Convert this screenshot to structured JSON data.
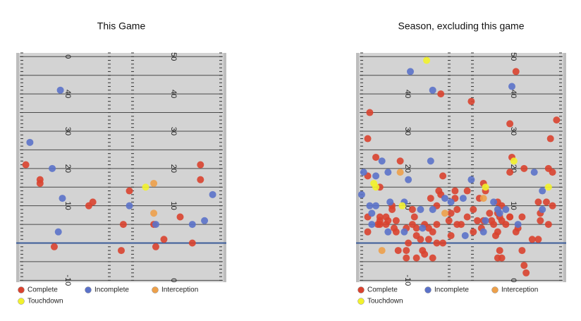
{
  "chart_data": [
    {
      "type": "scatter",
      "title": "This Game",
      "xlim": [
        0,
        100
      ],
      "ylim": [
        -10.5,
        51
      ],
      "yticks": [
        {
          "value": 50,
          "label": "0"
        },
        40,
        30,
        20,
        10,
        -10
      ],
      "y2ticks": [
        50,
        40,
        30,
        20,
        10,
        {
          "value": -10,
          "label": "0"
        }
      ],
      "series": [
        {
          "name": "Complete",
          "color": "#d9432f",
          "x": [
            3,
            10,
            10,
            17,
            34,
            36,
            54,
            51,
            50,
            66,
            67,
            71,
            79,
            85,
            89,
            89
          ],
          "values": [
            21,
            17,
            16,
            -1,
            10,
            11,
            14,
            5,
            -2,
            5,
            -1,
            1,
            7,
            0,
            21,
            17
          ]
        },
        {
          "name": "Incomplete",
          "color": "#5b72c9",
          "x": [
            20,
            5,
            16,
            21,
            19,
            54,
            67,
            85,
            91,
            95
          ],
          "values": [
            41,
            27,
            20,
            12,
            3,
            10,
            5,
            5,
            6,
            13
          ]
        },
        {
          "name": "Interception",
          "color": "#eda04a",
          "x": [
            66,
            66
          ],
          "values": [
            16,
            8
          ]
        },
        {
          "name": "Touchdown",
          "color": "#f2f22c",
          "x": [
            62
          ],
          "values": [
            15
          ]
        }
      ]
    },
    {
      "type": "scatter",
      "title": "Season, excluding this game",
      "xlim": [
        0,
        100
      ],
      "ylim": [
        -10.5,
        51
      ],
      "yticks": [
        40,
        30,
        20,
        10,
        -10
      ],
      "y2ticks": [
        50,
        40,
        30,
        20,
        10,
        {
          "value": -10,
          "label": "0"
        }
      ],
      "series": [
        {
          "name": "Complete",
          "color": "#d9432f",
          "x": [
            77,
            40,
            55,
            5,
            74,
            97,
            4,
            94,
            8,
            75,
            20,
            74,
            81,
            93,
            95,
            4,
            41,
            47,
            53,
            61,
            62,
            10,
            39,
            40,
            35,
            26,
            27,
            38,
            16,
            13,
            10,
            4,
            14,
            18,
            26,
            32,
            44,
            45,
            48,
            53,
            58,
            64,
            68,
            69,
            74,
            80,
            89,
            92,
            95,
            88,
            89,
            93,
            4,
            9,
            13,
            17,
            23,
            28,
            34,
            38,
            36,
            45,
            48,
            50,
            56,
            60,
            61,
            66,
            68,
            70,
            72,
            77,
            78,
            85,
            88,
            67,
            69,
            68,
            70,
            80,
            81,
            82,
            24,
            23,
            19,
            23,
            28,
            31,
            32,
            36,
            38,
            41,
            34,
            30,
            28,
            18,
            10,
            16,
            10,
            68,
            59,
            70,
            65,
            74,
            56,
            47
          ],
          "values": [
            46,
            40,
            38,
            35,
            32,
            33,
            28,
            28,
            23,
            23,
            22,
            19,
            20,
            20,
            19,
            18,
            18,
            14,
            14,
            16,
            14,
            15,
            14,
            13,
            12,
            9,
            7,
            10,
            9,
            7,
            7,
            7,
            6,
            6,
            5,
            5,
            6,
            8,
            9,
            7,
            6,
            8,
            8,
            7,
            7,
            7,
            8,
            11,
            10,
            11,
            6,
            5,
            3,
            5,
            5,
            4,
            4,
            4,
            4,
            5,
            3,
            2,
            5,
            5,
            3,
            4,
            6,
            5,
            3,
            6,
            5,
            3,
            4,
            1,
            1,
            2,
            -2,
            -4,
            -4,
            -2,
            -6,
            -8,
            0,
            -2,
            -2,
            -4,
            -4,
            -2,
            -3,
            -4,
            0,
            0,
            1,
            1,
            2,
            3,
            6,
            10,
            5,
            11,
            12,
            10,
            6,
            7,
            9,
            12
          ]
        },
        {
          "name": "Incomplete",
          "color": "#5b72c9",
          "x": [
            25,
            36,
            75,
            35,
            11,
            2,
            8,
            14,
            24,
            55,
            86,
            90,
            1,
            5,
            8,
            15,
            22,
            30,
            36,
            42,
            51,
            45,
            66,
            68,
            72,
            78,
            62,
            6,
            6,
            14,
            22,
            31,
            52,
            61,
            90,
            69
          ],
          "values": [
            46,
            41,
            42,
            22,
            22,
            19,
            18,
            19,
            17,
            17,
            19,
            14,
            13,
            10,
            10,
            11,
            11,
            9,
            9,
            12,
            12,
            11,
            11,
            9,
            9,
            5,
            6,
            8,
            5,
            3,
            3,
            4,
            2,
            3,
            9,
            8
          ]
        },
        {
          "name": "Interception",
          "color": "#eda04a",
          "x": [
            20,
            11,
            61,
            42
          ],
          "values": [
            19,
            -2,
            12,
            8
          ]
        },
        {
          "name": "Touchdown",
          "color": "#f2f22c",
          "x": [
            33,
            76,
            7,
            8,
            21,
            93,
            62
          ],
          "values": [
            49,
            22,
            16,
            15,
            10,
            15,
            15
          ]
        }
      ]
    }
  ]
}
